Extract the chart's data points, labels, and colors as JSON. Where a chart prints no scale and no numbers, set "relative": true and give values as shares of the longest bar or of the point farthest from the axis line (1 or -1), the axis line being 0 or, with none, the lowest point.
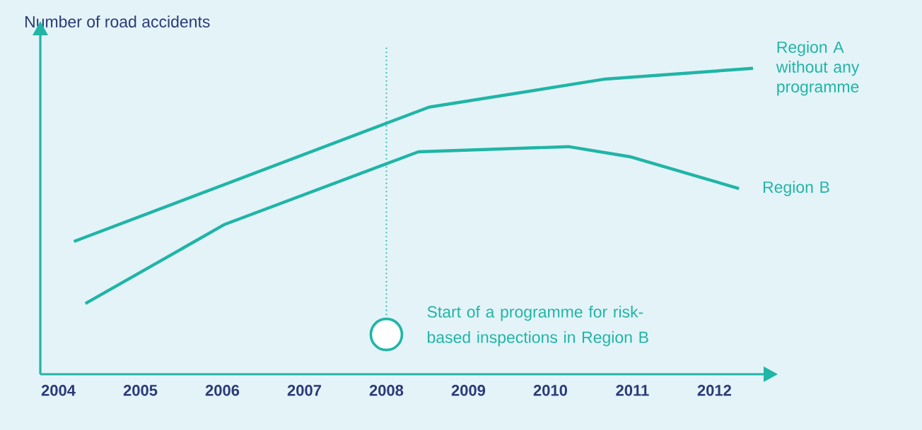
{
  "chart_data": {
    "type": "line",
    "ylabel": "Number of road accidents",
    "relative": true,
    "xlim": [
      2003.78,
      2012.6
    ],
    "xticks": [
      2004,
      2005,
      2006,
      2007,
      2008,
      2009,
      2010,
      2011,
      2012
    ],
    "series": [
      {
        "name": "Region A without any programme",
        "color": "#20b5a6",
        "x": [
          2004.19,
          2008.52,
          2010.67,
          2012.47
        ],
        "values": [
          0.434,
          0.873,
          0.965,
          1.0
        ]
      },
      {
        "name": "Region B",
        "color": "#20b5a6",
        "x": [
          2004.33,
          2006.03,
          2008.39,
          2010.22,
          2010.97,
          2012.3
        ],
        "values": [
          0.231,
          0.49,
          0.727,
          0.744,
          0.711,
          0.607
        ]
      }
    ],
    "ref_lines": [
      {
        "axis": "x",
        "value": 2008,
        "label": "Start of a programme for risk-based inspections in Region B",
        "line_style": "dotted",
        "color": "#20b5a6"
      }
    ],
    "grid": false
  }
}
